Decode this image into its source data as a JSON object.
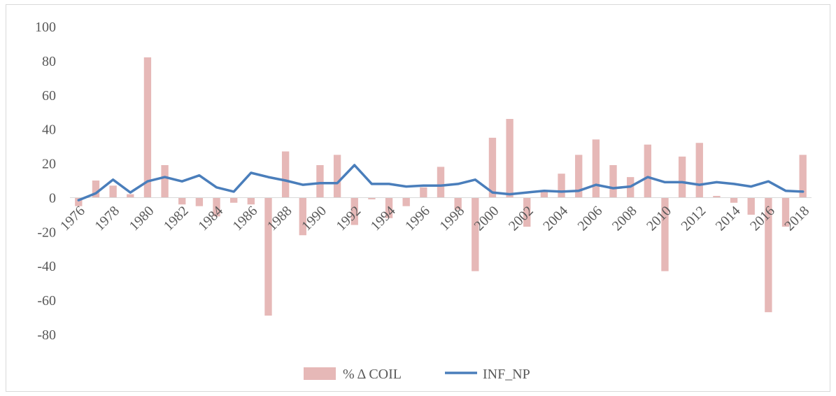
{
  "chart_data": {
    "type": "bar+line",
    "title": "",
    "xlabel": "",
    "ylabel": "",
    "ylim": [
      -80,
      100
    ],
    "y_ticks": [
      100,
      80,
      60,
      40,
      20,
      0,
      -20,
      -40,
      -60,
      -80
    ],
    "grid": false,
    "legend_position": "bottom",
    "x_tick_labels": [
      "1976",
      "1978",
      "1980",
      "1982",
      "1984",
      "1986",
      "1988",
      "1990",
      "1992",
      "1994",
      "1996",
      "1998",
      "2000",
      "2002",
      "2004",
      "2006",
      "2008",
      "2010",
      "2012",
      "2014",
      "2016",
      "2018"
    ],
    "years": [
      1976,
      1977,
      1978,
      1979,
      1980,
      1981,
      1982,
      1983,
      1984,
      1985,
      1986,
      1987,
      1988,
      1989,
      1990,
      1991,
      1992,
      1993,
      1994,
      1995,
      1996,
      1997,
      1998,
      1999,
      2000,
      2001,
      2002,
      2003,
      2004,
      2005,
      2006,
      2007,
      2008,
      2009,
      2010,
      2011,
      2012,
      2013,
      2014,
      2015,
      2016,
      2017,
      2018
    ],
    "series": [
      {
        "name": "% Δ COIL",
        "type": "bar",
        "color": "#e6b8b7",
        "values": [
          -5,
          10,
          7,
          2,
          82,
          19,
          -4,
          -5,
          -11,
          -3,
          -4,
          -69,
          27,
          -22,
          19,
          25,
          -16,
          -1,
          -12,
          -5,
          6,
          18,
          -7,
          -43,
          35,
          46,
          -17,
          4,
          14,
          25,
          34,
          19,
          12,
          31,
          -43,
          24,
          32,
          1,
          -3,
          -10,
          -67,
          -17,
          25
        ]
      },
      {
        "name": "INF_NP",
        "type": "line",
        "color": "#4a7ebb",
        "values": [
          -1.5,
          2.5,
          10.5,
          3,
          9.5,
          12,
          9.5,
          13,
          6,
          3.5,
          14.5,
          12,
          10,
          7.5,
          8.5,
          8.5,
          19,
          8,
          8,
          6.5,
          7,
          7,
          8,
          10.5,
          3,
          2,
          3,
          4,
          3.5,
          4,
          7.5,
          5.5,
          6.5,
          12,
          9,
          9,
          7.5,
          9,
          8,
          6.5,
          9.5,
          4,
          3.5
        ]
      }
    ]
  }
}
